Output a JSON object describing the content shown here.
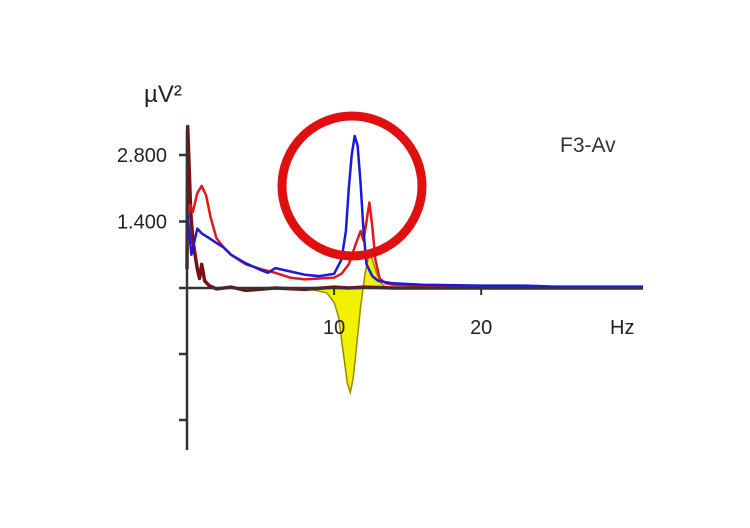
{
  "chart_data": {
    "type": "line",
    "ylabel": "µV²",
    "channel_label": "F3-Av",
    "x_unit_label": "Hz",
    "x_ticks": [
      10,
      20
    ],
    "y_ticks": [
      1.4,
      2.8
    ],
    "y_tick_labels": [
      "1.400",
      "2.800"
    ],
    "xlim": [
      0,
      31
    ],
    "ylim": [
      -2.8,
      3.4
    ],
    "grid": false,
    "colors": {
      "blue": "#1a1adc",
      "red": "#e01818",
      "dark_red": "#7a1010",
      "yellow_fill": "#f2f200",
      "yellow_stroke": "#9a8a00",
      "highlight_circle": "#e01010"
    },
    "series": [
      {
        "color": "blue",
        "x": [
          0,
          0.3,
          0.7,
          1,
          1.5,
          2,
          2.5,
          3,
          4,
          5,
          5.5,
          6,
          7,
          8,
          9,
          10,
          10.5,
          10.8,
          11,
          11.2,
          11.4,
          11.6,
          11.8,
          12,
          12.2,
          12.6,
          13,
          14,
          16,
          20,
          23,
          25,
          31
        ],
        "y": [
          1.65,
          0.7,
          1.25,
          1.15,
          1.05,
          0.95,
          0.85,
          0.7,
          0.52,
          0.38,
          0.32,
          0.42,
          0.35,
          0.28,
          0.25,
          0.3,
          0.6,
          1.2,
          2.1,
          2.8,
          3.2,
          3.0,
          2.2,
          1.2,
          0.5,
          0.25,
          0.15,
          0.1,
          0.07,
          0.05,
          0.05,
          0.03,
          0.03
        ]
      },
      {
        "color": "red",
        "x": [
          0,
          0.2,
          0.4,
          0.7,
          1,
          1.3,
          1.6,
          2,
          2.5,
          3,
          4,
          5,
          6,
          7,
          8,
          9,
          10,
          10.5,
          11,
          11.5,
          11.8,
          12,
          12.2,
          12.4,
          12.6,
          12.8,
          13.1,
          13.5,
          14,
          15,
          17,
          20,
          31
        ],
        "y": [
          1.3,
          1.75,
          1.6,
          2.0,
          2.15,
          1.95,
          1.5,
          1.05,
          0.85,
          0.7,
          0.5,
          0.4,
          0.32,
          0.22,
          0.18,
          0.2,
          0.22,
          0.3,
          0.5,
          0.95,
          1.2,
          1.0,
          1.4,
          1.8,
          1.3,
          0.6,
          0.2,
          0.1,
          0.07,
          0.06,
          0.04,
          0.02,
          0.02
        ]
      },
      {
        "color": "dark_red",
        "x": [
          0,
          0.05,
          0.15,
          0.25,
          0.4,
          0.55,
          0.7,
          0.85,
          1,
          1.2,
          1.5,
          2,
          3,
          4,
          6,
          8,
          10,
          11,
          12,
          14,
          20,
          31
        ],
        "y": [
          0.4,
          3.4,
          2.5,
          1.6,
          1.0,
          0.7,
          0.4,
          0.2,
          0.5,
          0.15,
          0.05,
          -0.02,
          0.02,
          -0.05,
          0.0,
          -0.03,
          0.02,
          0.0,
          0.02,
          0.0,
          0.0,
          0.0
        ]
      },
      {
        "color": "yellow",
        "x": [
          8,
          9.5,
          10,
          10.3,
          10.6,
          10.9,
          11.1,
          11.3,
          11.5,
          11.8,
          12.1,
          12.4,
          12.6,
          12.9,
          13.2,
          13.5,
          14
        ],
        "y": [
          0,
          -0.1,
          -0.3,
          -0.6,
          -1.3,
          -2.0,
          -2.2,
          -1.9,
          -1.3,
          -0.4,
          0.3,
          0.75,
          0.6,
          0.3,
          0.1,
          0.02,
          0
        ]
      }
    ]
  }
}
